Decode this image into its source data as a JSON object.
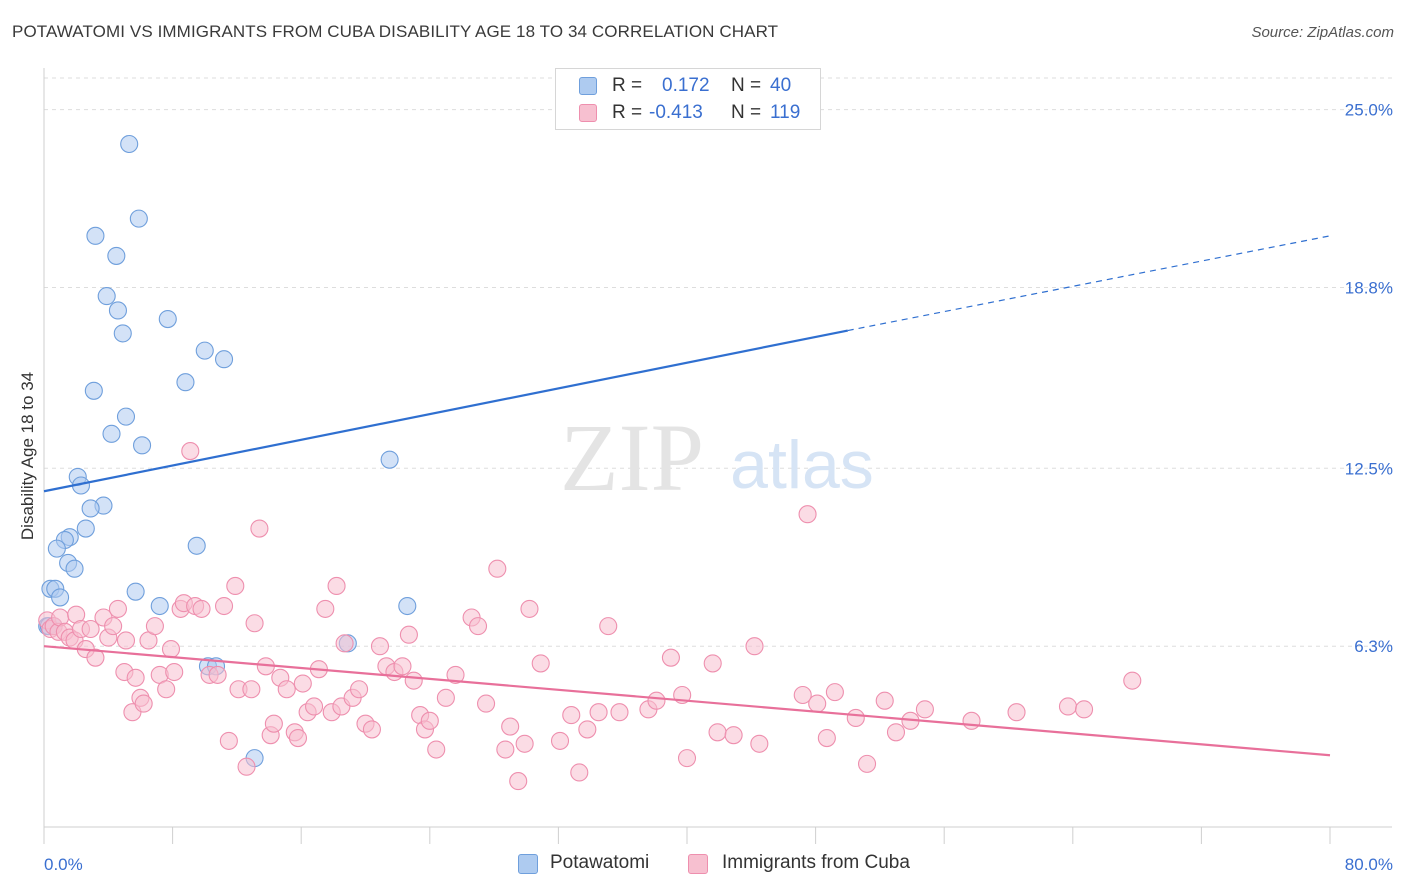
{
  "title": "POTAWATOMI VS IMMIGRANTS FROM CUBA DISABILITY AGE 18 TO 34 CORRELATION CHART",
  "source": "Source: ZipAtlas.com",
  "watermark": {
    "zip": "ZIP",
    "atlas": "atlas"
  },
  "legend": {
    "rows": [
      {
        "r_label": "R =",
        "r_value": "0.172",
        "n_label": "N =",
        "n_value": "40"
      },
      {
        "r_label": "R =",
        "r_value": "-0.413",
        "n_label": "N =",
        "n_value": "119"
      }
    ]
  },
  "bottom_legend": [
    "Potawatomi",
    "Immigrants from Cuba"
  ],
  "colors": {
    "blue_fill": "#aecbf0",
    "blue_stroke": "#6f9fdc",
    "blue_line": "#2f6fd0",
    "pink_fill": "#f7c0d0",
    "pink_stroke": "#ee8fae",
    "pink_line": "#e8709a",
    "grid": "#dddddd",
    "tick_label": "#3a6fd0"
  },
  "chart_data": {
    "type": "scatter",
    "title": "POTAWATOMI VS IMMIGRANTS FROM CUBA DISABILITY AGE 18 TO 34 CORRELATION CHART",
    "xlabel": "",
    "ylabel": "Disability Age 18 to 34",
    "xlim": [
      0,
      80
    ],
    "ylim": [
      0,
      25
    ],
    "x_tick_labels": [
      "0.0%",
      "80.0%"
    ],
    "y_ticks": [
      6.3,
      12.5,
      18.8,
      25.0
    ],
    "y_tick_labels": [
      "6.3%",
      "12.5%",
      "18.8%",
      "25.0%"
    ],
    "grid": true,
    "legend_position": "top-center",
    "series": [
      {
        "name": "Potawatomi",
        "color": "#aecbf0",
        "r": 0.172,
        "n": 40,
        "trend": {
          "x_start": 0,
          "y_start": 11.7,
          "x_end": 50,
          "y_end": 17.3,
          "dashed_to_x": 80,
          "dashed_to_y": 20.6
        },
        "points": [
          [
            5.3,
            23.8
          ],
          [
            5.9,
            21.2
          ],
          [
            3.2,
            20.6
          ],
          [
            4.5,
            19.9
          ],
          [
            3.9,
            18.5
          ],
          [
            4.6,
            18.0
          ],
          [
            7.7,
            17.7
          ],
          [
            4.9,
            17.2
          ],
          [
            10.0,
            16.6
          ],
          [
            11.2,
            16.3
          ],
          [
            8.8,
            15.5
          ],
          [
            3.1,
            15.2
          ],
          [
            5.1,
            14.3
          ],
          [
            4.2,
            13.7
          ],
          [
            6.1,
            13.3
          ],
          [
            21.5,
            12.8
          ],
          [
            2.1,
            12.2
          ],
          [
            2.3,
            11.9
          ],
          [
            3.7,
            11.2
          ],
          [
            2.9,
            11.1
          ],
          [
            2.6,
            10.4
          ],
          [
            1.6,
            10.1
          ],
          [
            1.3,
            10.0
          ],
          [
            9.5,
            9.8
          ],
          [
            0.8,
            9.7
          ],
          [
            1.5,
            9.2
          ],
          [
            1.9,
            9.0
          ],
          [
            0.4,
            8.3
          ],
          [
            0.7,
            8.3
          ],
          [
            5.7,
            8.2
          ],
          [
            1.0,
            8.0
          ],
          [
            7.2,
            7.7
          ],
          [
            22.6,
            7.7
          ],
          [
            0.2,
            7.0
          ],
          [
            0.3,
            7.0
          ],
          [
            0.6,
            7.0
          ],
          [
            18.9,
            6.4
          ],
          [
            10.2,
            5.6
          ],
          [
            10.7,
            5.6
          ],
          [
            13.1,
            2.4
          ]
        ]
      },
      {
        "name": "Immigrants from Cuba",
        "color": "#f7c0d0",
        "r": -0.413,
        "n": 119,
        "trend": {
          "x_start": 0,
          "y_start": 6.3,
          "x_end": 80,
          "y_end": 2.5
        },
        "points": [
          [
            0.2,
            7.2
          ],
          [
            0.4,
            6.9
          ],
          [
            0.6,
            7.0
          ],
          [
            0.9,
            6.8
          ],
          [
            1.0,
            7.3
          ],
          [
            1.3,
            6.8
          ],
          [
            1.6,
            6.6
          ],
          [
            1.9,
            6.5
          ],
          [
            2.0,
            7.4
          ],
          [
            2.3,
            6.9
          ],
          [
            2.6,
            6.2
          ],
          [
            2.9,
            6.9
          ],
          [
            3.2,
            5.9
          ],
          [
            3.7,
            7.3
          ],
          [
            4.0,
            6.6
          ],
          [
            4.3,
            7.0
          ],
          [
            4.6,
            7.6
          ],
          [
            5.0,
            5.4
          ],
          [
            5.1,
            6.5
          ],
          [
            5.5,
            4.0
          ],
          [
            5.7,
            5.2
          ],
          [
            6.0,
            4.5
          ],
          [
            6.2,
            4.3
          ],
          [
            6.5,
            6.5
          ],
          [
            6.9,
            7.0
          ],
          [
            7.2,
            5.3
          ],
          [
            7.6,
            4.8
          ],
          [
            7.9,
            6.2
          ],
          [
            8.1,
            5.4
          ],
          [
            8.5,
            7.6
          ],
          [
            8.7,
            7.8
          ],
          [
            9.1,
            13.1
          ],
          [
            9.4,
            7.7
          ],
          [
            9.8,
            7.6
          ],
          [
            10.3,
            5.3
          ],
          [
            10.8,
            5.3
          ],
          [
            11.2,
            7.7
          ],
          [
            11.5,
            3.0
          ],
          [
            11.9,
            8.4
          ],
          [
            12.1,
            4.8
          ],
          [
            12.6,
            2.1
          ],
          [
            12.9,
            4.8
          ],
          [
            13.1,
            7.1
          ],
          [
            13.4,
            10.4
          ],
          [
            13.8,
            5.6
          ],
          [
            14.1,
            3.2
          ],
          [
            14.3,
            3.6
          ],
          [
            14.7,
            5.2
          ],
          [
            15.1,
            4.8
          ],
          [
            15.6,
            3.3
          ],
          [
            15.8,
            3.1
          ],
          [
            16.1,
            5.0
          ],
          [
            16.4,
            4.0
          ],
          [
            16.8,
            4.2
          ],
          [
            17.1,
            5.5
          ],
          [
            17.5,
            7.6
          ],
          [
            17.9,
            4.0
          ],
          [
            18.2,
            8.4
          ],
          [
            18.5,
            4.2
          ],
          [
            18.7,
            6.4
          ],
          [
            19.2,
            4.5
          ],
          [
            19.6,
            4.8
          ],
          [
            20.0,
            3.6
          ],
          [
            20.4,
            3.4
          ],
          [
            20.9,
            6.3
          ],
          [
            21.3,
            5.6
          ],
          [
            21.8,
            5.4
          ],
          [
            22.3,
            5.6
          ],
          [
            22.7,
            6.7
          ],
          [
            23.0,
            5.1
          ],
          [
            23.4,
            3.9
          ],
          [
            23.7,
            3.4
          ],
          [
            24.0,
            3.7
          ],
          [
            24.4,
            2.7
          ],
          [
            25.0,
            4.5
          ],
          [
            25.6,
            5.3
          ],
          [
            26.6,
            7.3
          ],
          [
            27.0,
            7.0
          ],
          [
            27.5,
            4.3
          ],
          [
            28.2,
            9.0
          ],
          [
            28.7,
            2.7
          ],
          [
            29.0,
            3.5
          ],
          [
            29.5,
            1.6
          ],
          [
            29.9,
            2.9
          ],
          [
            30.2,
            7.6
          ],
          [
            30.9,
            5.7
          ],
          [
            32.1,
            3.0
          ],
          [
            32.8,
            3.9
          ],
          [
            33.3,
            1.9
          ],
          [
            33.8,
            3.4
          ],
          [
            34.5,
            4.0
          ],
          [
            35.1,
            7.0
          ],
          [
            35.8,
            4.0
          ],
          [
            37.6,
            4.1
          ],
          [
            38.1,
            4.4
          ],
          [
            39.0,
            5.9
          ],
          [
            39.7,
            4.6
          ],
          [
            40.0,
            2.4
          ],
          [
            41.6,
            5.7
          ],
          [
            41.9,
            3.3
          ],
          [
            42.9,
            3.2
          ],
          [
            44.2,
            6.3
          ],
          [
            44.5,
            2.9
          ],
          [
            47.2,
            4.6
          ],
          [
            48.1,
            4.3
          ],
          [
            48.7,
            3.1
          ],
          [
            47.5,
            10.9
          ],
          [
            49.2,
            4.7
          ],
          [
            50.5,
            3.8
          ],
          [
            51.2,
            2.2
          ],
          [
            52.3,
            4.4
          ],
          [
            53.0,
            3.3
          ],
          [
            53.9,
            3.7
          ],
          [
            54.8,
            4.1
          ],
          [
            57.7,
            3.7
          ],
          [
            60.5,
            4.0
          ],
          [
            63.7,
            4.2
          ],
          [
            64.7,
            4.1
          ],
          [
            67.7,
            5.1
          ]
        ]
      }
    ]
  }
}
